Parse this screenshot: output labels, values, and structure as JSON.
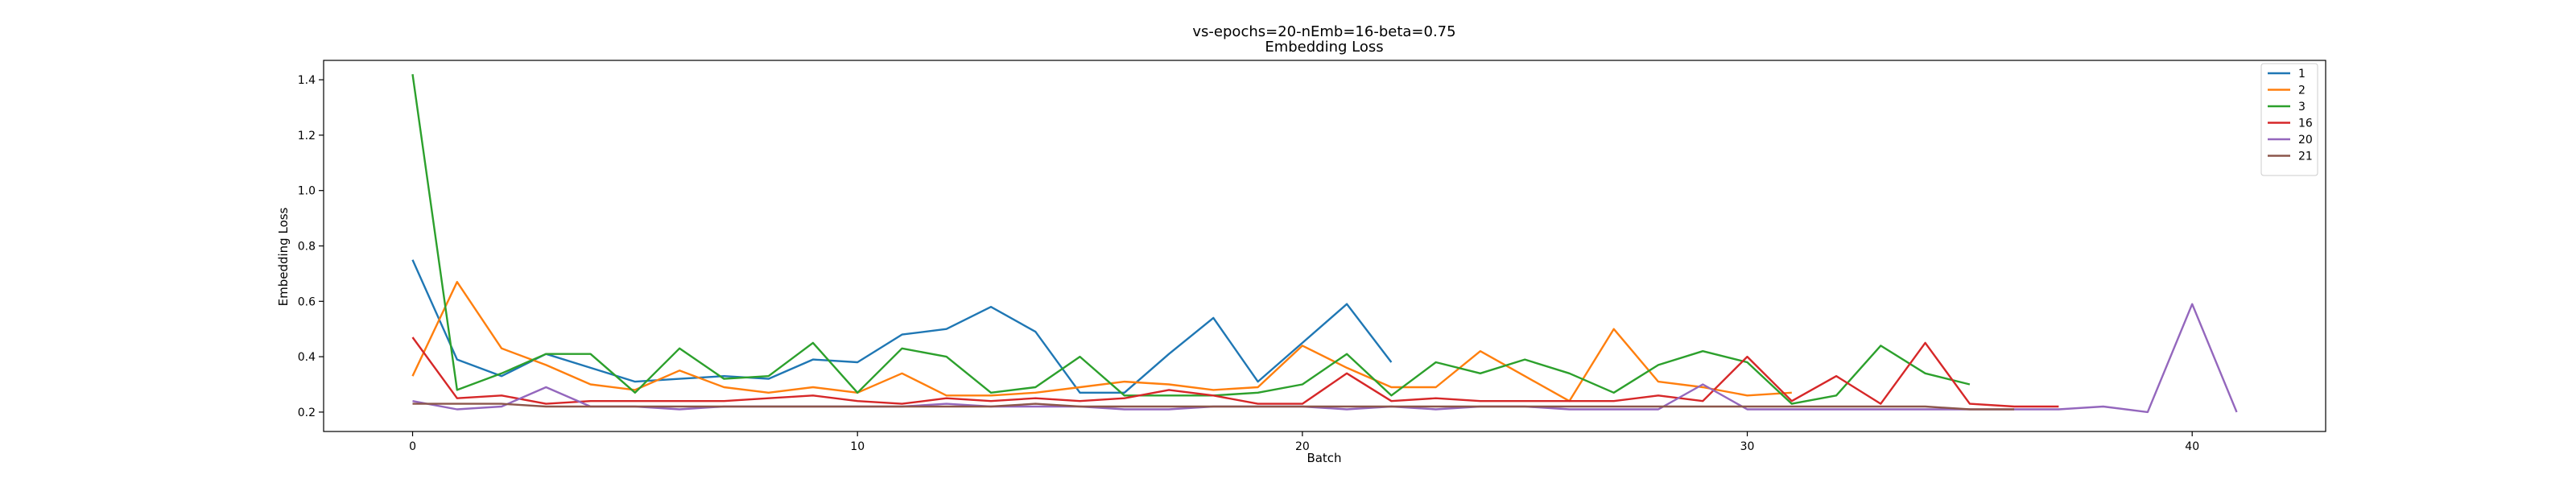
{
  "chart_data": {
    "type": "line",
    "title": "vs-epochs=20-nEmb=16-beta=0.75",
    "subtitle": "Embedding Loss",
    "xlabel": "Batch",
    "ylabel": "Embedding Loss",
    "xlim": [
      -2,
      43
    ],
    "ylim": [
      0.13,
      1.47
    ],
    "xticks": [
      0,
      10,
      20,
      30,
      40
    ],
    "yticks": [
      0.2,
      0.4,
      0.6,
      0.8,
      1.0,
      1.2,
      1.4
    ],
    "grid": false,
    "legend_position": "top-right",
    "series": [
      {
        "name": "1",
        "color": "#1f77b4",
        "x": [
          0,
          1,
          2,
          3,
          4,
          5,
          6,
          7,
          8,
          9,
          10,
          11,
          12,
          13,
          14,
          15,
          16,
          17,
          18,
          19,
          20,
          21,
          22
        ],
        "values": [
          0.75,
          0.39,
          0.33,
          0.41,
          0.36,
          0.31,
          0.32,
          0.33,
          0.32,
          0.39,
          0.38,
          0.48,
          0.5,
          0.58,
          0.49,
          0.27,
          0.27,
          0.41,
          0.54,
          0.31,
          0.45,
          0.59,
          0.38
        ]
      },
      {
        "name": "2",
        "color": "#ff7f0e",
        "x": [
          0,
          1,
          2,
          3,
          4,
          5,
          6,
          7,
          8,
          9,
          10,
          11,
          12,
          13,
          14,
          15,
          16,
          17,
          18,
          19,
          20,
          21,
          22,
          23,
          24,
          25,
          26,
          27,
          28,
          29,
          30,
          31
        ],
        "values": [
          0.33,
          0.67,
          0.43,
          0.37,
          0.3,
          0.28,
          0.35,
          0.29,
          0.27,
          0.29,
          0.27,
          0.34,
          0.26,
          0.26,
          0.27,
          0.29,
          0.31,
          0.3,
          0.28,
          0.29,
          0.44,
          0.36,
          0.29,
          0.29,
          0.42,
          0.33,
          0.24,
          0.5,
          0.31,
          0.29,
          0.26,
          0.27
        ]
      },
      {
        "name": "3",
        "color": "#2ca02c",
        "x": [
          0,
          1,
          2,
          3,
          4,
          5,
          6,
          7,
          8,
          9,
          10,
          11,
          12,
          13,
          14,
          15,
          16,
          17,
          18,
          19,
          20,
          21,
          22,
          23,
          24,
          25,
          26,
          27,
          28,
          29,
          30,
          31,
          32,
          33,
          34,
          35
        ],
        "values": [
          1.42,
          0.28,
          0.34,
          0.41,
          0.41,
          0.27,
          0.43,
          0.32,
          0.33,
          0.45,
          0.27,
          0.43,
          0.4,
          0.27,
          0.29,
          0.4,
          0.26,
          0.26,
          0.26,
          0.27,
          0.3,
          0.41,
          0.26,
          0.38,
          0.34,
          0.39,
          0.34,
          0.27,
          0.37,
          0.42,
          0.38,
          0.23,
          0.26,
          0.44,
          0.34,
          0.3
        ]
      },
      {
        "name": "16",
        "color": "#d62728",
        "x": [
          0,
          1,
          2,
          3,
          4,
          5,
          6,
          7,
          8,
          9,
          10,
          11,
          12,
          13,
          14,
          15,
          16,
          17,
          18,
          19,
          20,
          21,
          22,
          23,
          24,
          25,
          26,
          27,
          28,
          29,
          30,
          31,
          32,
          33,
          34,
          35,
          36,
          37
        ],
        "values": [
          0.47,
          0.25,
          0.26,
          0.23,
          0.24,
          0.24,
          0.24,
          0.24,
          0.25,
          0.26,
          0.24,
          0.23,
          0.25,
          0.24,
          0.25,
          0.24,
          0.25,
          0.28,
          0.26,
          0.23,
          0.23,
          0.34,
          0.24,
          0.25,
          0.24,
          0.24,
          0.24,
          0.24,
          0.26,
          0.24,
          0.4,
          0.24,
          0.33,
          0.23,
          0.45,
          0.23,
          0.22,
          0.22
        ]
      },
      {
        "name": "20",
        "color": "#9467bd",
        "x": [
          0,
          1,
          2,
          3,
          4,
          5,
          6,
          7,
          8,
          9,
          10,
          11,
          12,
          13,
          14,
          15,
          16,
          17,
          18,
          19,
          20,
          21,
          22,
          23,
          24,
          25,
          26,
          27,
          28,
          29,
          30,
          31,
          32,
          33,
          34,
          35,
          36,
          37,
          38,
          39,
          40,
          41
        ],
        "values": [
          0.24,
          0.21,
          0.22,
          0.29,
          0.22,
          0.22,
          0.21,
          0.22,
          0.22,
          0.22,
          0.22,
          0.22,
          0.23,
          0.22,
          0.22,
          0.22,
          0.21,
          0.21,
          0.22,
          0.22,
          0.22,
          0.21,
          0.22,
          0.21,
          0.22,
          0.22,
          0.21,
          0.21,
          0.21,
          0.3,
          0.21,
          0.21,
          0.21,
          0.21,
          0.21,
          0.21,
          0.21,
          0.21,
          0.22,
          0.2,
          0.59,
          0.2
        ]
      },
      {
        "name": "21",
        "color": "#8c564b",
        "x": [
          0,
          1,
          2,
          3,
          4,
          5,
          6,
          7,
          8,
          9,
          10,
          11,
          12,
          13,
          14,
          15,
          16,
          17,
          18,
          19,
          20,
          21,
          22,
          23,
          24,
          25,
          26,
          27,
          28,
          29,
          30,
          31,
          32,
          33,
          34,
          35,
          36
        ],
        "values": [
          0.23,
          0.23,
          0.23,
          0.22,
          0.22,
          0.22,
          0.22,
          0.22,
          0.22,
          0.22,
          0.22,
          0.22,
          0.22,
          0.22,
          0.23,
          0.22,
          0.22,
          0.22,
          0.22,
          0.22,
          0.22,
          0.22,
          0.22,
          0.22,
          0.22,
          0.22,
          0.22,
          0.22,
          0.22,
          0.22,
          0.22,
          0.22,
          0.22,
          0.22,
          0.22,
          0.21,
          0.21
        ]
      }
    ]
  }
}
